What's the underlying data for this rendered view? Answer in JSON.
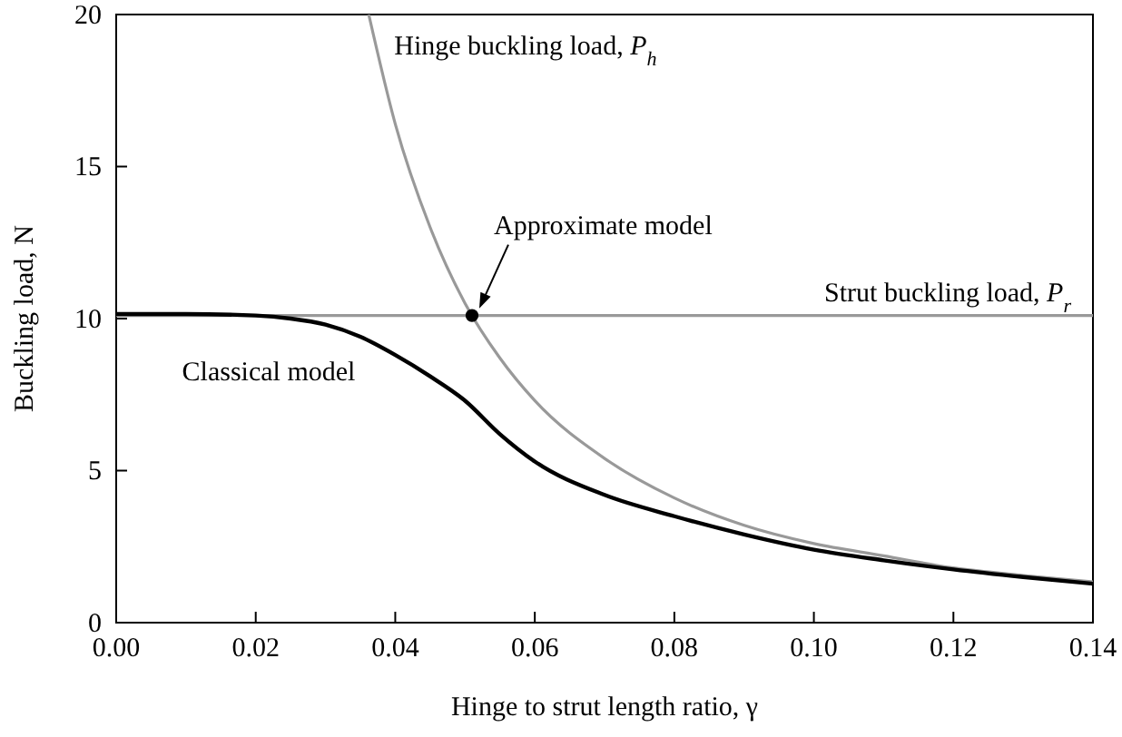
{
  "chart_data": {
    "type": "line",
    "xlabel": "Hinge to strut length ratio, γ",
    "ylabel": "Buckling load, N",
    "xlim": [
      0,
      0.14
    ],
    "ylim": [
      0,
      20
    ],
    "xticks": [
      {
        "value": 0,
        "label": "0.00"
      },
      {
        "value": 0.02,
        "label": "0.02"
      },
      {
        "value": 0.04,
        "label": "0.04"
      },
      {
        "value": 0.06,
        "label": "0.06"
      },
      {
        "value": 0.08,
        "label": "0.08"
      },
      {
        "value": 0.1,
        "label": "0.10"
      },
      {
        "value": 0.12,
        "label": "0.12"
      },
      {
        "value": 0.14,
        "label": "0.14"
      }
    ],
    "yticks": [
      0,
      5,
      10,
      15,
      20
    ],
    "grid": false,
    "series": [
      {
        "name": "Hinge buckling load, P$_{h}$",
        "color": "#999999",
        "x": [
          0.0362,
          0.04,
          0.045,
          0.05,
          0.055,
          0.06,
          0.07,
          0.08,
          0.09,
          0.1,
          0.11,
          0.12,
          0.13,
          0.14
        ],
        "values": [
          20,
          16.4,
          13,
          10.5,
          8.7,
          7.3,
          5.4,
          4.1,
          3.2,
          2.6,
          2.2,
          1.8,
          1.55,
          1.34
        ]
      },
      {
        "name": "Strut buckling load, P$_{r}$",
        "color": "#999999",
        "x": [
          0,
          0.14
        ],
        "values": [
          10.1,
          10.1
        ]
      },
      {
        "name": "Classical model",
        "color": "#000000",
        "x": [
          0,
          0.01,
          0.02,
          0.025,
          0.03,
          0.035,
          0.04,
          0.045,
          0.05,
          0.055,
          0.06,
          0.07,
          0.08,
          0.09,
          0.1,
          0.11,
          0.12,
          0.13,
          0.14
        ],
        "values": [
          10.15,
          10.15,
          10.1,
          10,
          9.8,
          9.4,
          8.8,
          8.1,
          7.3,
          6.2,
          5.3,
          4.2,
          3.5,
          2.9,
          2.4,
          2.05,
          1.75,
          1.5,
          1.28
        ]
      },
      {
        "type": "scatter",
        "color": "#000000",
        "marker": "circle",
        "x": [
          0.051
        ],
        "values": [
          10.1
        ]
      }
    ],
    "annotations": [
      {
        "text": "Approximate model",
        "x": 0.051,
        "y": 10.1
      }
    ]
  }
}
